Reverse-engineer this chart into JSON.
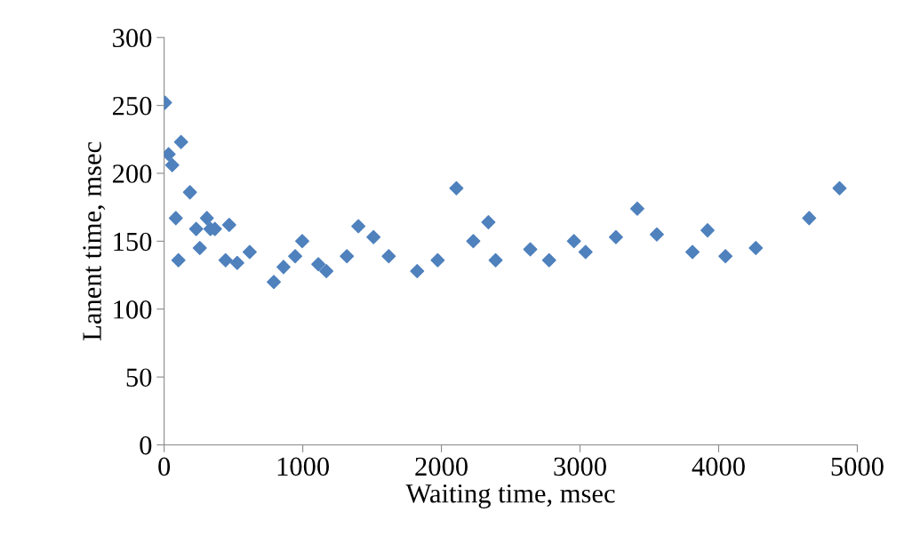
{
  "chart_data": {
    "type": "scatter",
    "xlabel": "Waiting time, msec",
    "ylabel": "Lanent time, msec",
    "xlim": [
      0,
      5000
    ],
    "xticks": [
      0,
      1000,
      2000,
      3000,
      4000,
      5000
    ],
    "ylim": [
      0,
      300
    ],
    "yticks": [
      0,
      50,
      100,
      150,
      200,
      250,
      300
    ],
    "grid": false,
    "legend": false,
    "marker": "diamond",
    "series": [
      {
        "color": "#4f81bd",
        "x": [
          6,
          32,
          58,
          122,
          186,
          84,
          103,
          231,
          257,
          308,
          334,
          366,
          443,
          469,
          527,
          617,
          791,
          861,
          945,
          996,
          1112,
          1170,
          1318,
          1401,
          1510,
          1620,
          1825,
          1973,
          2108,
          2230,
          2339,
          2391,
          2641,
          2777,
          2956,
          3040,
          3259,
          3413,
          3554,
          3811,
          3920,
          4049,
          4268,
          4653,
          4872
        ],
        "values": [
          252,
          214,
          206,
          223,
          186,
          167,
          136,
          159,
          145,
          167,
          159,
          159,
          136,
          162,
          134,
          142,
          120,
          131,
          139,
          150,
          133,
          128,
          139,
          161,
          153,
          139,
          128,
          136,
          189,
          150,
          164,
          136,
          144,
          136,
          150,
          142,
          153,
          174,
          155,
          142,
          158,
          139,
          145,
          167,
          189
        ]
      }
    ]
  }
}
